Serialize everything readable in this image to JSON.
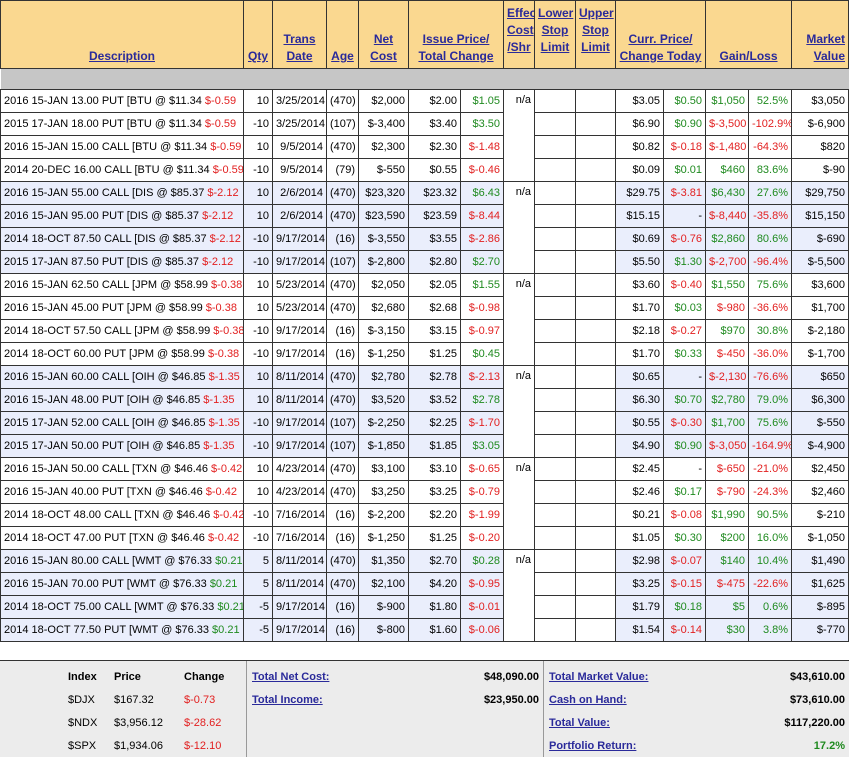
{
  "headers": {
    "description": "Description",
    "qty": "Qty",
    "trans_date": "Trans Date",
    "age": "Age",
    "net_cost": "Net Cost",
    "issue_price": "Issue Price/ Total Change",
    "effective_cost": "Effective Cost /Shr",
    "lower_stop": "Lower Stop Limit",
    "upper_stop": "Upper Stop Limit",
    "curr_price": "Curr. Price/ Change Today",
    "gain_loss": "Gain/Loss",
    "market_value": "Market Value"
  },
  "groups": [
    {
      "effective": "n/a",
      "rows": [
        {
          "desc": "2016 15-JAN 13.00 PUT [BTU @ $11.34 ",
          "desc_chg": "$-0.59",
          "desc_sign": "neg",
          "qty": "10",
          "date": "3/25/2014",
          "age": "(470)",
          "net": "$2,000",
          "issue": "$2.00",
          "tchg": "$1.05",
          "tsign": "pos",
          "curr": "$3.05",
          "today": "$0.50",
          "todsign": "pos",
          "gain": "$1,050",
          "pct": "52.5%",
          "gsign": "pos",
          "mv": "$3,050"
        },
        {
          "desc": "2015 17-JAN 18.00 PUT [BTU @ $11.34 ",
          "desc_chg": "$-0.59",
          "desc_sign": "neg",
          "qty": "-10",
          "date": "3/25/2014",
          "age": "(107)",
          "net": "$-3,400",
          "issue": "$3.40",
          "tchg": "$3.50",
          "tsign": "pos",
          "curr": "$6.90",
          "today": "$0.90",
          "todsign": "pos",
          "gain": "$-3,500",
          "pct": "-102.9%",
          "gsign": "neg",
          "mv": "$-6,900"
        },
        {
          "desc": "2016 15-JAN 15.00 CALL [BTU @ $11.34 ",
          "desc_chg": "$-0.59",
          "desc_sign": "neg",
          "qty": "10",
          "date": "9/5/2014",
          "age": "(470)",
          "net": "$2,300",
          "issue": "$2.30",
          "tchg": "$-1.48",
          "tsign": "neg",
          "curr": "$0.82",
          "today": "$-0.18",
          "todsign": "neg",
          "gain": "$-1,480",
          "pct": "-64.3%",
          "gsign": "neg",
          "mv": "$820"
        },
        {
          "desc": "2014 20-DEC 16.00 CALL [BTU @ $11.34 ",
          "desc_chg": "$-0.59",
          "desc_sign": "neg",
          "qty": "-10",
          "date": "9/5/2014",
          "age": "(79)",
          "net": "$-550",
          "issue": "$0.55",
          "tchg": "$-0.46",
          "tsign": "neg",
          "curr": "$0.09",
          "today": "$0.01",
          "todsign": "pos",
          "gain": "$460",
          "pct": "83.6%",
          "gsign": "pos",
          "mv": "$-90"
        }
      ]
    },
    {
      "effective": "n/a",
      "rows": [
        {
          "desc": "2016 15-JAN 55.00 CALL [DIS @ $85.37 ",
          "desc_chg": "$-2.12",
          "desc_sign": "neg",
          "qty": "10",
          "date": "2/6/2014",
          "age": "(470)",
          "net": "$23,320",
          "issue": "$23.32",
          "tchg": "$6.43",
          "tsign": "pos",
          "curr": "$29.75",
          "today": "$-3.81",
          "todsign": "neg",
          "gain": "$6,430",
          "pct": "27.6%",
          "gsign": "pos",
          "mv": "$29,750"
        },
        {
          "desc": "2016 15-JAN 95.00 PUT [DIS @ $85.37 ",
          "desc_chg": "$-2.12",
          "desc_sign": "neg",
          "qty": "10",
          "date": "2/6/2014",
          "age": "(470)",
          "net": "$23,590",
          "issue": "$23.59",
          "tchg": "$-8.44",
          "tsign": "neg",
          "curr": "$15.15",
          "today": "-",
          "todsign": "none",
          "gain": "$-8,440",
          "pct": "-35.8%",
          "gsign": "neg",
          "mv": "$15,150"
        },
        {
          "desc": "2014 18-OCT 87.50 CALL [DIS @ $85.37 ",
          "desc_chg": "$-2.12",
          "desc_sign": "neg",
          "qty": "-10",
          "date": "9/17/2014",
          "age": "(16)",
          "net": "$-3,550",
          "issue": "$3.55",
          "tchg": "$-2.86",
          "tsign": "neg",
          "curr": "$0.69",
          "today": "$-0.76",
          "todsign": "neg",
          "gain": "$2,860",
          "pct": "80.6%",
          "gsign": "pos",
          "mv": "$-690"
        },
        {
          "desc": "2015 17-JAN 87.50 PUT [DIS @ $85.37 ",
          "desc_chg": "$-2.12",
          "desc_sign": "neg",
          "qty": "-10",
          "date": "9/17/2014",
          "age": "(107)",
          "net": "$-2,800",
          "issue": "$2.80",
          "tchg": "$2.70",
          "tsign": "pos",
          "curr": "$5.50",
          "today": "$1.30",
          "todsign": "pos",
          "gain": "$-2,700",
          "pct": "-96.4%",
          "gsign": "neg",
          "mv": "$-5,500"
        }
      ]
    },
    {
      "effective": "n/a",
      "rows": [
        {
          "desc": "2016 15-JAN 62.50 CALL [JPM @ $58.99 ",
          "desc_chg": "$-0.38",
          "desc_sign": "neg",
          "qty": "10",
          "date": "5/23/2014",
          "age": "(470)",
          "net": "$2,050",
          "issue": "$2.05",
          "tchg": "$1.55",
          "tsign": "pos",
          "curr": "$3.60",
          "today": "$-0.40",
          "todsign": "neg",
          "gain": "$1,550",
          "pct": "75.6%",
          "gsign": "pos",
          "mv": "$3,600"
        },
        {
          "desc": "2016 15-JAN 45.00 PUT [JPM @ $58.99 ",
          "desc_chg": "$-0.38",
          "desc_sign": "neg",
          "qty": "10",
          "date": "5/23/2014",
          "age": "(470)",
          "net": "$2,680",
          "issue": "$2.68",
          "tchg": "$-0.98",
          "tsign": "neg",
          "curr": "$1.70",
          "today": "$0.03",
          "todsign": "pos",
          "gain": "$-980",
          "pct": "-36.6%",
          "gsign": "neg",
          "mv": "$1,700"
        },
        {
          "desc": "2014 18-OCT 57.50 CALL [JPM @ $58.99 ",
          "desc_chg": "$-0.38",
          "desc_sign": "neg",
          "qty": "-10",
          "date": "9/17/2014",
          "age": "(16)",
          "net": "$-3,150",
          "issue": "$3.15",
          "tchg": "$-0.97",
          "tsign": "neg",
          "curr": "$2.18",
          "today": "$-0.27",
          "todsign": "neg",
          "gain": "$970",
          "pct": "30.8%",
          "gsign": "pos",
          "mv": "$-2,180"
        },
        {
          "desc": "2014 18-OCT 60.00 PUT [JPM @ $58.99 ",
          "desc_chg": "$-0.38",
          "desc_sign": "neg",
          "qty": "-10",
          "date": "9/17/2014",
          "age": "(16)",
          "net": "$-1,250",
          "issue": "$1.25",
          "tchg": "$0.45",
          "tsign": "pos",
          "curr": "$1.70",
          "today": "$0.33",
          "todsign": "pos",
          "gain": "$-450",
          "pct": "-36.0%",
          "gsign": "neg",
          "mv": "$-1,700"
        }
      ]
    },
    {
      "effective": "n/a",
      "rows": [
        {
          "desc": "2016 15-JAN 60.00 CALL [OIH @ $46.85 ",
          "desc_chg": "$-1.35",
          "desc_sign": "neg",
          "qty": "10",
          "date": "8/11/2014",
          "age": "(470)",
          "net": "$2,780",
          "issue": "$2.78",
          "tchg": "$-2.13",
          "tsign": "neg",
          "curr": "$0.65",
          "today": "-",
          "todsign": "none",
          "gain": "$-2,130",
          "pct": "-76.6%",
          "gsign": "neg",
          "mv": "$650"
        },
        {
          "desc": "2016 15-JAN 48.00 PUT [OIH @ $46.85 ",
          "desc_chg": "$-1.35",
          "desc_sign": "neg",
          "qty": "10",
          "date": "8/11/2014",
          "age": "(470)",
          "net": "$3,520",
          "issue": "$3.52",
          "tchg": "$2.78",
          "tsign": "pos",
          "curr": "$6.30",
          "today": "$0.70",
          "todsign": "pos",
          "gain": "$2,780",
          "pct": "79.0%",
          "gsign": "pos",
          "mv": "$6,300"
        },
        {
          "desc": "2015 17-JAN 52.00 CALL [OIH @ $46.85 ",
          "desc_chg": "$-1.35",
          "desc_sign": "neg",
          "qty": "-10",
          "date": "9/17/2014",
          "age": "(107)",
          "net": "$-2,250",
          "issue": "$2.25",
          "tchg": "$-1.70",
          "tsign": "neg",
          "curr": "$0.55",
          "today": "$-0.30",
          "todsign": "neg",
          "gain": "$1,700",
          "pct": "75.6%",
          "gsign": "pos",
          "mv": "$-550"
        },
        {
          "desc": "2015 17-JAN 50.00 PUT [OIH @ $46.85 ",
          "desc_chg": "$-1.35",
          "desc_sign": "neg",
          "qty": "-10",
          "date": "9/17/2014",
          "age": "(107)",
          "net": "$-1,850",
          "issue": "$1.85",
          "tchg": "$3.05",
          "tsign": "pos",
          "curr": "$4.90",
          "today": "$0.90",
          "todsign": "pos",
          "gain": "$-3,050",
          "pct": "-164.9%",
          "gsign": "neg",
          "mv": "$-4,900"
        }
      ]
    },
    {
      "effective": "n/a",
      "rows": [
        {
          "desc": "2016 15-JAN 50.00 CALL [TXN @ $46.46 ",
          "desc_chg": "$-0.42",
          "desc_sign": "neg",
          "qty": "10",
          "date": "4/23/2014",
          "age": "(470)",
          "net": "$3,100",
          "issue": "$3.10",
          "tchg": "$-0.65",
          "tsign": "neg",
          "curr": "$2.45",
          "today": "-",
          "todsign": "none",
          "gain": "$-650",
          "pct": "-21.0%",
          "gsign": "neg",
          "mv": "$2,450"
        },
        {
          "desc": "2016 15-JAN 40.00 PUT [TXN @ $46.46 ",
          "desc_chg": "$-0.42",
          "desc_sign": "neg",
          "qty": "10",
          "date": "4/23/2014",
          "age": "(470)",
          "net": "$3,250",
          "issue": "$3.25",
          "tchg": "$-0.79",
          "tsign": "neg",
          "curr": "$2.46",
          "today": "$0.17",
          "todsign": "pos",
          "gain": "$-790",
          "pct": "-24.3%",
          "gsign": "neg",
          "mv": "$2,460"
        },
        {
          "desc": "2014 18-OCT 48.00 CALL [TXN @ $46.46 ",
          "desc_chg": "$-0.42",
          "desc_sign": "neg",
          "qty": "-10",
          "date": "7/16/2014",
          "age": "(16)",
          "net": "$-2,200",
          "issue": "$2.20",
          "tchg": "$-1.99",
          "tsign": "neg",
          "curr": "$0.21",
          "today": "$-0.08",
          "todsign": "neg",
          "gain": "$1,990",
          "pct": "90.5%",
          "gsign": "pos",
          "mv": "$-210"
        },
        {
          "desc": "2014 18-OCT 47.00 PUT [TXN @ $46.46 ",
          "desc_chg": "$-0.42",
          "desc_sign": "neg",
          "qty": "-10",
          "date": "7/16/2014",
          "age": "(16)",
          "net": "$-1,250",
          "issue": "$1.25",
          "tchg": "$-0.20",
          "tsign": "neg",
          "curr": "$1.05",
          "today": "$0.30",
          "todsign": "pos",
          "gain": "$200",
          "pct": "16.0%",
          "gsign": "pos",
          "mv": "$-1,050"
        }
      ]
    },
    {
      "effective": "n/a",
      "rows": [
        {
          "desc": "2016 15-JAN 80.00 CALL [WMT @ $76.33 ",
          "desc_chg": "$0.21",
          "desc_sign": "pos",
          "qty": "5",
          "date": "8/11/2014",
          "age": "(470)",
          "net": "$1,350",
          "issue": "$2.70",
          "tchg": "$0.28",
          "tsign": "pos",
          "curr": "$2.98",
          "today": "$-0.07",
          "todsign": "neg",
          "gain": "$140",
          "pct": "10.4%",
          "gsign": "pos",
          "mv": "$1,490"
        },
        {
          "desc": "2016 15-JAN 70.00 PUT [WMT @ $76.33 ",
          "desc_chg": "$0.21",
          "desc_sign": "pos",
          "qty": "5",
          "date": "8/11/2014",
          "age": "(470)",
          "net": "$2,100",
          "issue": "$4.20",
          "tchg": "$-0.95",
          "tsign": "neg",
          "curr": "$3.25",
          "today": "$-0.15",
          "todsign": "neg",
          "gain": "$-475",
          "pct": "-22.6%",
          "gsign": "neg",
          "mv": "$1,625"
        },
        {
          "desc": "2014 18-OCT 75.00 CALL [WMT @ $76.33 ",
          "desc_chg": "$0.21",
          "desc_sign": "pos",
          "qty": "-5",
          "date": "9/17/2014",
          "age": "(16)",
          "net": "$-900",
          "issue": "$1.80",
          "tchg": "$-0.01",
          "tsign": "neg",
          "curr": "$1.79",
          "today": "$0.18",
          "todsign": "pos",
          "gain": "$5",
          "pct": "0.6%",
          "gsign": "pos",
          "mv": "$-895"
        },
        {
          "desc": "2014 18-OCT 77.50 PUT [WMT @ $76.33 ",
          "desc_chg": "$0.21",
          "desc_sign": "pos",
          "qty": "-5",
          "date": "9/17/2014",
          "age": "(16)",
          "net": "$-800",
          "issue": "$1.60",
          "tchg": "$-0.06",
          "tsign": "neg",
          "curr": "$1.54",
          "today": "$-0.14",
          "todsign": "neg",
          "gain": "$30",
          "pct": "3.8%",
          "gsign": "pos",
          "mv": "$-770"
        }
      ]
    }
  ],
  "index": {
    "headers": {
      "index": "Index",
      "price": "Price",
      "change": "Change"
    },
    "rows": [
      {
        "name": "$DJX",
        "price": "$167.32",
        "change": "$-0.73"
      },
      {
        "name": "$NDX",
        "price": "$3,956.12",
        "change": "$-28.62"
      },
      {
        "name": "$SPX",
        "price": "$1,934.06",
        "change": "$-12.10"
      }
    ]
  },
  "summary": {
    "total_net_cost_label": "Total Net Cost:",
    "total_net_cost": "$48,090.00",
    "total_income_label": "Total Income:",
    "total_income": "$23,950.00",
    "total_market_value_label": "Total Market Value:",
    "total_market_value": "$43,610.00",
    "cash_on_hand_label": "Cash on Hand:",
    "cash_on_hand": "$73,610.00",
    "total_value_label": "Total Value:",
    "total_value": "$117,220.00",
    "portfolio_return_label": "Portfolio Return:",
    "portfolio_return": "17.2%"
  },
  "colors": {
    "negative": "#e22020",
    "positive": "#1f8a1f",
    "header_bg": "#fad890",
    "alt_group_bg": "#eaeefc"
  }
}
